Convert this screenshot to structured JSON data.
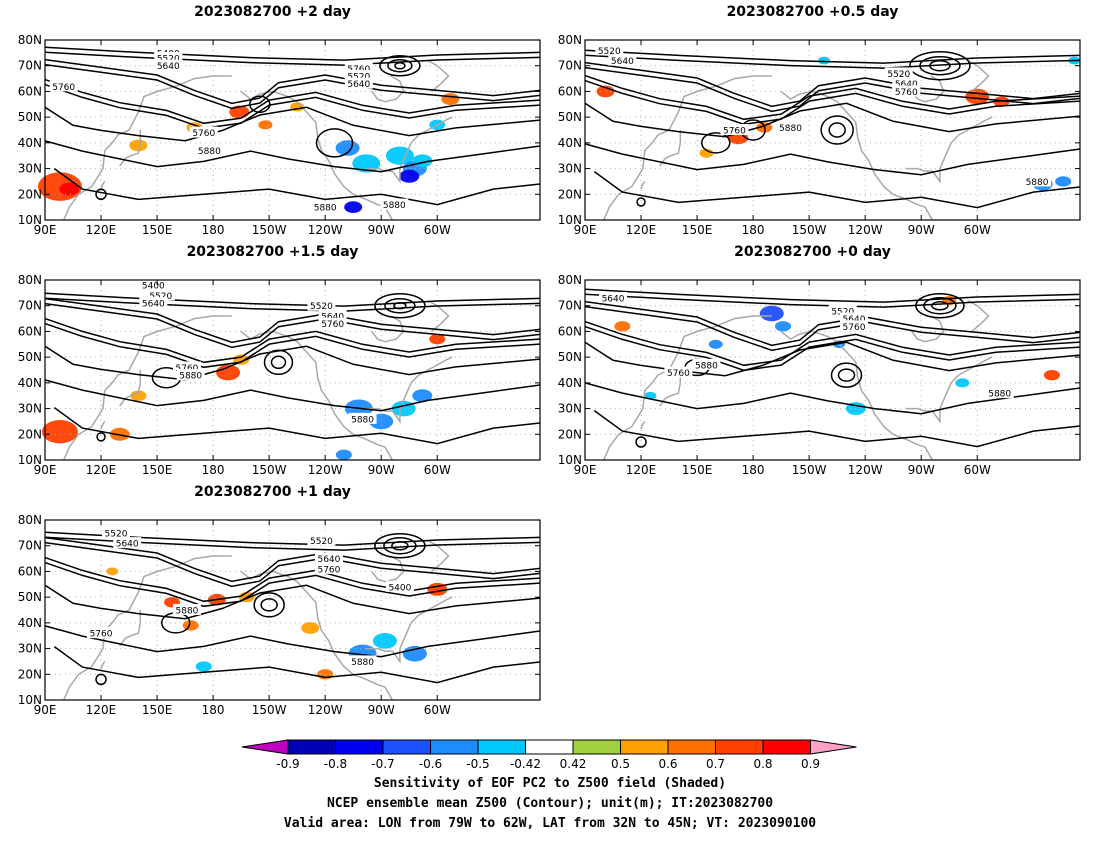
{
  "panels": [
    {
      "id": "p2",
      "title": "2023082700  +2 day",
      "contour_labels": [
        "5400",
        "5520",
        "5640",
        "5760",
        "5520",
        "5640",
        "5760",
        "5760",
        "5880",
        "5880",
        "5880"
      ]
    },
    {
      "id": "p05",
      "title": "2023082700  +0.5 day",
      "contour_labels": [
        "5520",
        "5640",
        "5520",
        "5640",
        "5760",
        "5760",
        "5880",
        "5880"
      ]
    },
    {
      "id": "p15",
      "title": "2023082700  +1.5 day",
      "contour_labels": [
        "5400",
        "5520",
        "5640",
        "5520",
        "5640",
        "5760",
        "5760",
        "5880",
        "5880"
      ]
    },
    {
      "id": "p0",
      "title": "2023082700  +0 day",
      "contour_labels": [
        "5640",
        "5520",
        "5640",
        "5760",
        "5760",
        "5880",
        "5880"
      ]
    },
    {
      "id": "p1",
      "title": "2023082700  +1 day",
      "contour_labels": [
        "5520",
        "5640",
        "5520",
        "5640",
        "5760",
        "5400",
        "5880",
        "5760",
        "5880"
      ]
    }
  ],
  "axes": {
    "lat_labels": [
      "80N",
      "70N",
      "60N",
      "50N",
      "40N",
      "30N",
      "20N",
      "10N"
    ],
    "lon_labels": [
      "90E",
      "120E",
      "150E",
      "180",
      "150W",
      "120W",
      "90W",
      "60W"
    ]
  },
  "colorbar": {
    "tick_labels": [
      "-0.9",
      "-0.8",
      "-0.7",
      "-0.6",
      "-0.5",
      "-0.42",
      "0.42",
      "0.5",
      "0.6",
      "0.7",
      "0.8",
      "0.9"
    ],
    "colors": [
      "#c000c0",
      "#0000b4",
      "#0000f0",
      "#1e50ff",
      "#1e8cff",
      "#00c8ff",
      "#ffffff",
      "#a0d040",
      "#ffa000",
      "#ff7000",
      "#ff4000",
      "#ff0000",
      "#ffa0c8"
    ]
  },
  "captions": {
    "line1": "Sensitivity of EOF PC2 to Z500 field (Shaded)",
    "line2": "NCEP ensemble mean Z500 (Contour); unit(m); IT:2023082700",
    "line3": "Valid area: LON from 79W to 62W, LAT from 32N to 45N; VT: 2023090100"
  }
}
